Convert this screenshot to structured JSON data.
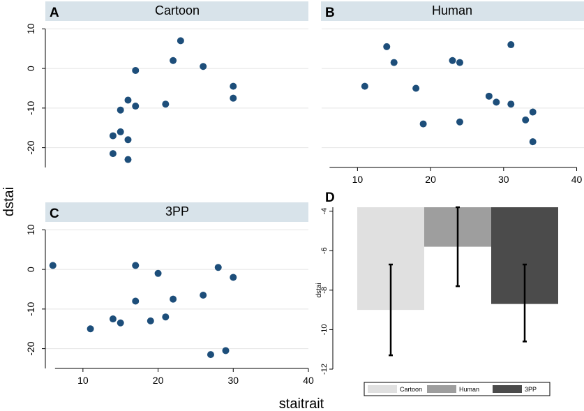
{
  "figure": {
    "ylabel": "dstai",
    "xlabel": "staitrait"
  },
  "chart_data": [
    {
      "type": "scatter",
      "panel": "A",
      "title": "Cartoon",
      "xlim": [
        5,
        40
      ],
      "ylim": [
        -25,
        12
      ],
      "yticks": [
        10,
        0,
        -10,
        -20
      ],
      "x_axis_shown": false,
      "points": [
        {
          "x": 23,
          "y": 7
        },
        {
          "x": 22,
          "y": 2
        },
        {
          "x": 26,
          "y": 0.5
        },
        {
          "x": 17,
          "y": -0.5
        },
        {
          "x": 30,
          "y": -4.5
        },
        {
          "x": 30,
          "y": -7.5
        },
        {
          "x": 16,
          "y": -8
        },
        {
          "x": 17,
          "y": -9.5
        },
        {
          "x": 21,
          "y": -9
        },
        {
          "x": 15,
          "y": -10.5
        },
        {
          "x": 15,
          "y": -16
        },
        {
          "x": 14,
          "y": -17
        },
        {
          "x": 16,
          "y": -18
        },
        {
          "x": 14,
          "y": -21.5
        },
        {
          "x": 16,
          "y": -23
        }
      ]
    },
    {
      "type": "scatter",
      "panel": "B",
      "title": "Human",
      "xlim": [
        5,
        41
      ],
      "ylim": [
        -25,
        12
      ],
      "xticks": [
        10,
        20,
        30,
        40
      ],
      "y_axis_shown": false,
      "points": [
        {
          "x": 14,
          "y": 5.5
        },
        {
          "x": 15,
          "y": 1.5
        },
        {
          "x": 11,
          "y": -4.5
        },
        {
          "x": 18,
          "y": -5
        },
        {
          "x": 23,
          "y": 2
        },
        {
          "x": 24,
          "y": 1.5
        },
        {
          "x": 31,
          "y": 6
        },
        {
          "x": 28,
          "y": -7
        },
        {
          "x": 29,
          "y": -8.5
        },
        {
          "x": 31,
          "y": -9
        },
        {
          "x": 34,
          "y": -11
        },
        {
          "x": 33,
          "y": -13
        },
        {
          "x": 19,
          "y": -14
        },
        {
          "x": 24,
          "y": -13.5
        },
        {
          "x": 34,
          "y": -18.5
        }
      ]
    },
    {
      "type": "scatter",
      "panel": "C",
      "title": "3PP",
      "xlim": [
        5,
        40
      ],
      "ylim": [
        -25,
        12
      ],
      "xticks": [
        10,
        20,
        30,
        40
      ],
      "yticks": [
        10,
        0,
        -10,
        -20
      ],
      "points": [
        {
          "x": 6,
          "y": 1
        },
        {
          "x": 17,
          "y": 1
        },
        {
          "x": 20,
          "y": -1
        },
        {
          "x": 28,
          "y": 0.5
        },
        {
          "x": 30,
          "y": -2
        },
        {
          "x": 17,
          "y": -8
        },
        {
          "x": 22,
          "y": -7.5
        },
        {
          "x": 26,
          "y": -6.5
        },
        {
          "x": 21,
          "y": -12
        },
        {
          "x": 14,
          "y": -12.5
        },
        {
          "x": 15,
          "y": -13.5
        },
        {
          "x": 19,
          "y": -13
        },
        {
          "x": 11,
          "y": -15
        },
        {
          "x": 29,
          "y": -20.5
        },
        {
          "x": 27,
          "y": -21.5
        }
      ]
    },
    {
      "type": "bar",
      "panel": "D",
      "ylabel": "dstai",
      "ylim": [
        -12,
        -3.8
      ],
      "yticks": [
        -4,
        -6,
        -8,
        -10,
        -12
      ],
      "ytick_labels": [
        "-4",
        "-6",
        "-8",
        "-10",
        "-12"
      ],
      "baseline": -3.8,
      "categories": [
        "Cartoon",
        "Human",
        "3PP"
      ],
      "values": [
        -9.0,
        -5.8,
        -8.7
      ],
      "error_low": [
        -11.3,
        -7.8,
        -10.6
      ],
      "error_high": [
        -6.7,
        -3.8,
        -6.7
      ],
      "colors": [
        "#e0e0e0",
        "#9e9e9e",
        "#4b4b4b"
      ],
      "legend": [
        "Cartoon",
        "Human",
        "3PP"
      ],
      "legend_position": "bottom"
    }
  ]
}
